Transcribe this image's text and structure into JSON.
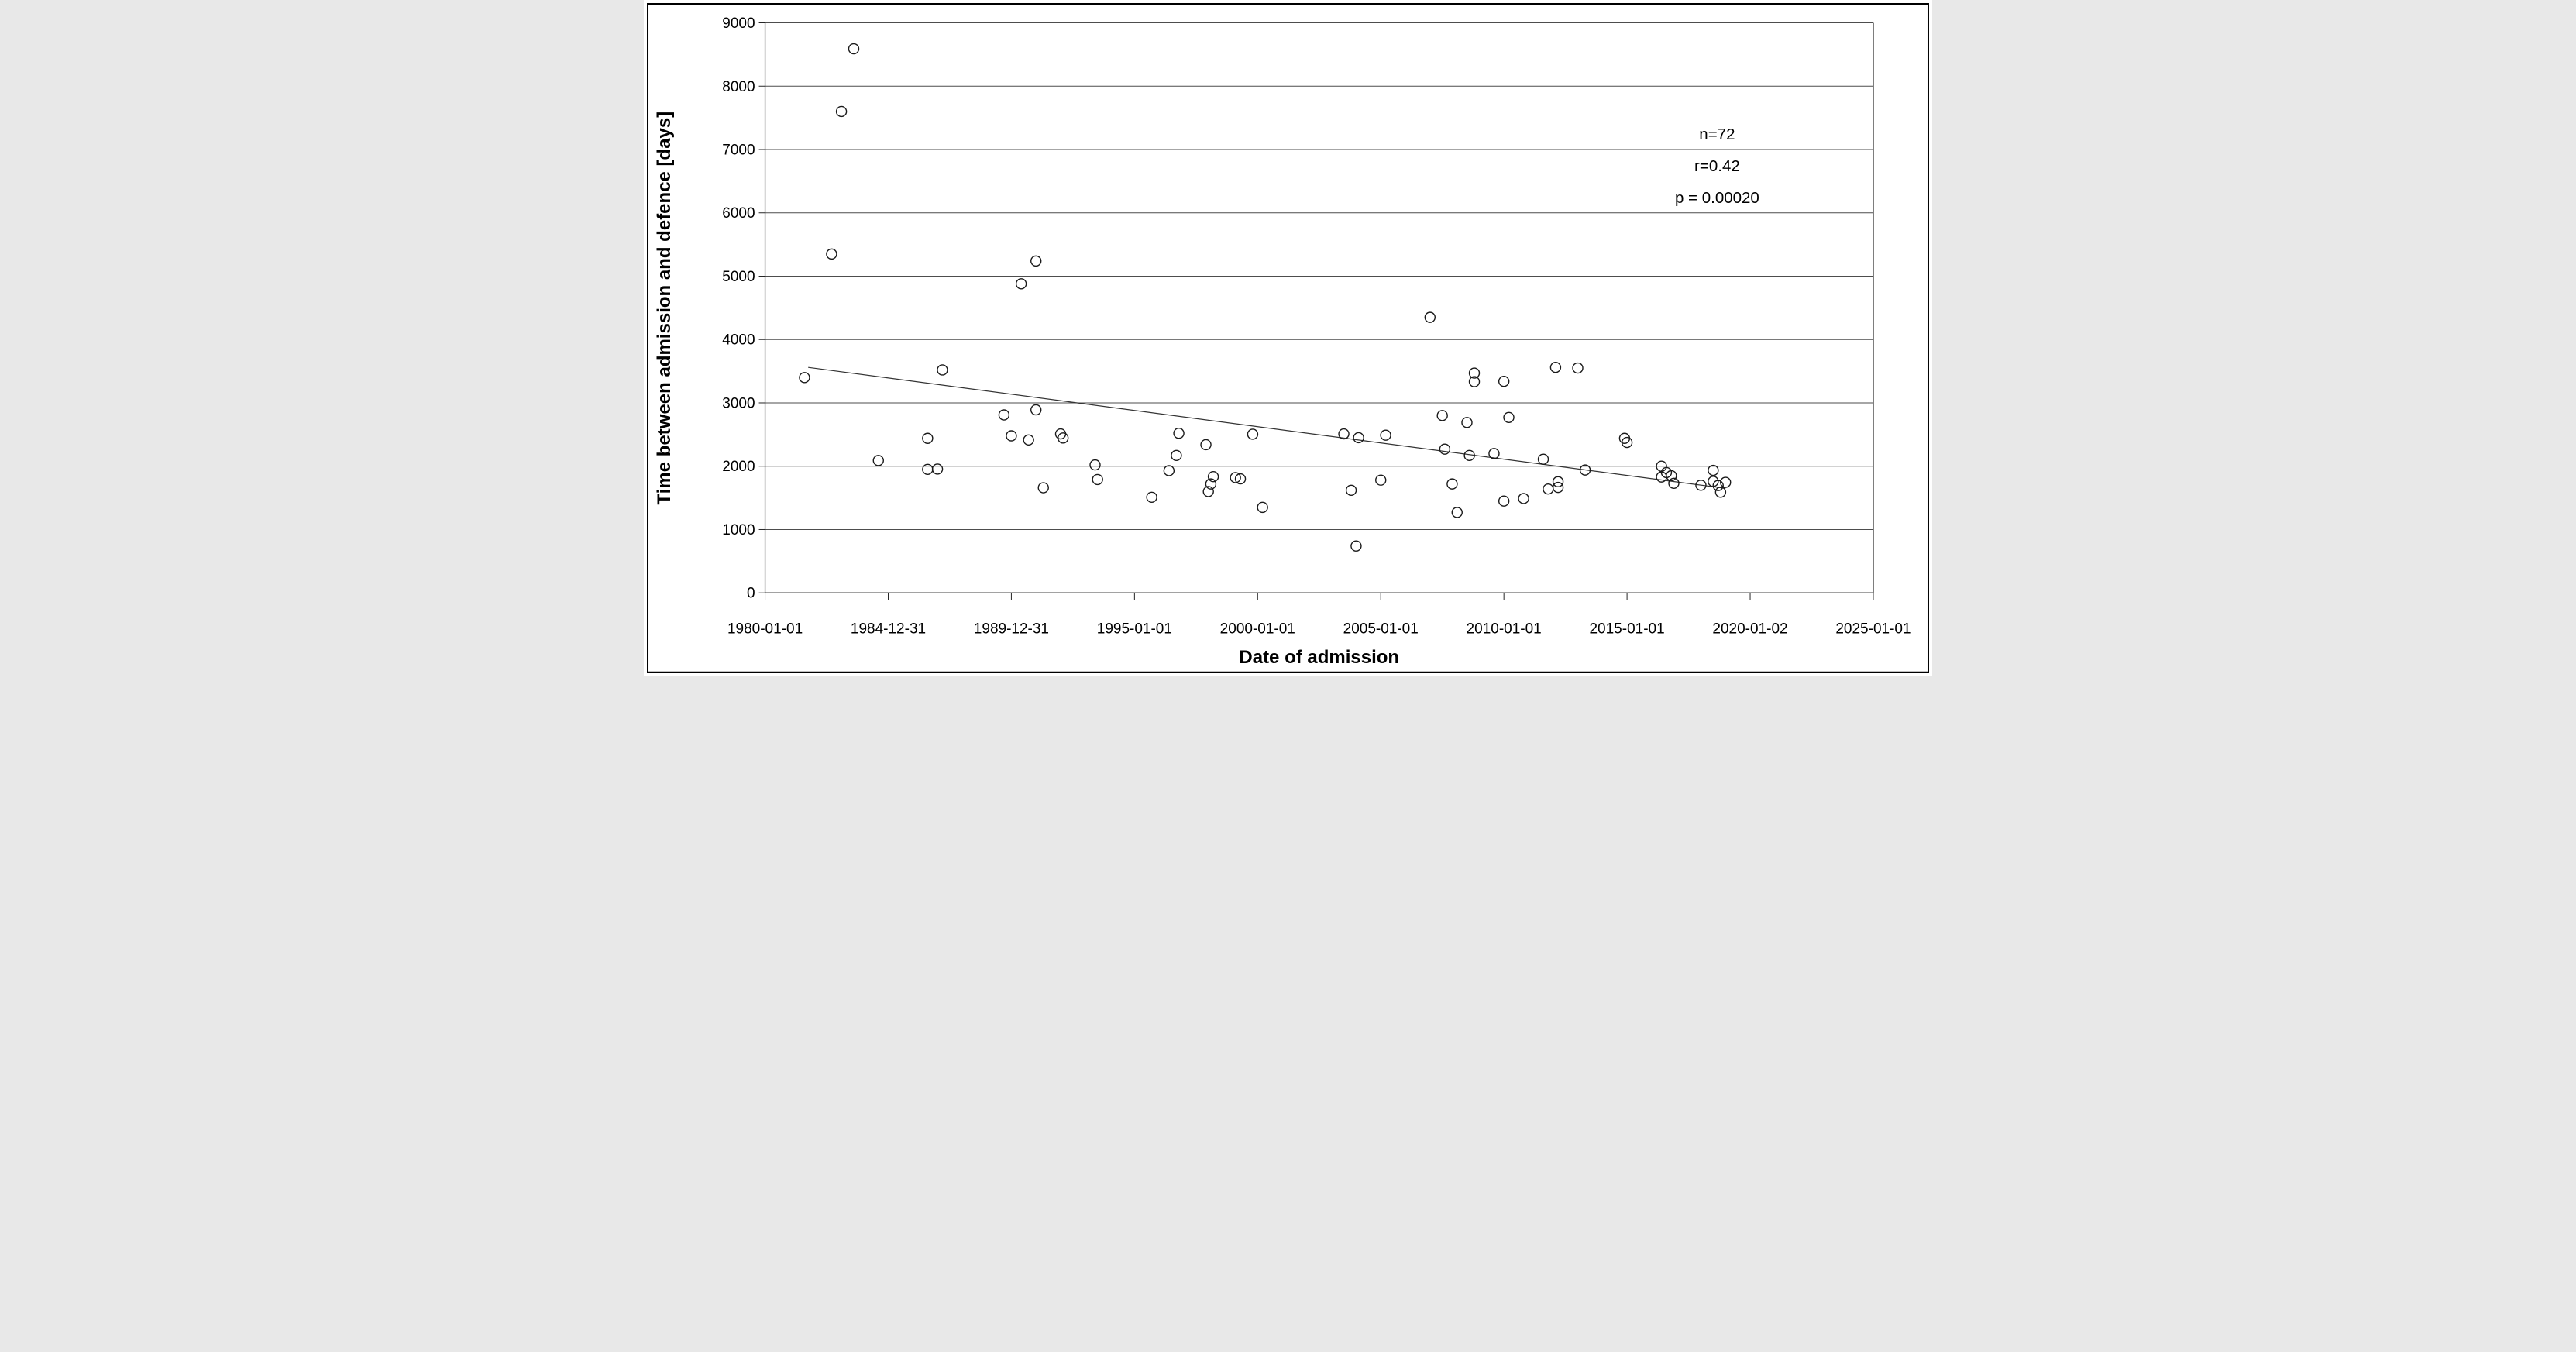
{
  "figure": {
    "background": "#ffffff",
    "border_color": "#000000",
    "marker_color": "#1a1a1a",
    "gridline_color": "#4d4d4d"
  },
  "chart_data": {
    "type": "scatter",
    "title": "",
    "xlabel": "Date of admission",
    "ylabel": "Time between admission and defence [days]",
    "legend": "none",
    "grid": "horizontal",
    "xlim_years": [
      1980,
      2025
    ],
    "ylim": [
      0,
      9000
    ],
    "y_ticks": [
      0,
      1000,
      2000,
      3000,
      4000,
      5000,
      6000,
      7000,
      8000,
      9000
    ],
    "x_tick_years": [
      1980,
      1985,
      1990,
      1995,
      2000,
      2005,
      2010,
      2015,
      2020,
      2025
    ],
    "x_tick_labels": [
      "1980-01-01",
      "1984-12-31",
      "1989-12-31",
      "1995-01-01",
      "2000-01-01",
      "2005-01-01",
      "2010-01-01",
      "2015-01-01",
      "2020-01-02",
      "2025-01-01"
    ],
    "marker": {
      "shape": "open-circle",
      "radius_px": 13
    },
    "points": [
      {
        "x": 1981.6,
        "y": 3400
      },
      {
        "x": 1982.7,
        "y": 5350
      },
      {
        "x": 1983.1,
        "y": 7600
      },
      {
        "x": 1983.6,
        "y": 8590
      },
      {
        "x": 1984.6,
        "y": 2090
      },
      {
        "x": 1986.6,
        "y": 2440
      },
      {
        "x": 1986.6,
        "y": 1950
      },
      {
        "x": 1987.0,
        "y": 1955
      },
      {
        "x": 1987.2,
        "y": 3520
      },
      {
        "x": 1989.7,
        "y": 2810
      },
      {
        "x": 1990.0,
        "y": 2480
      },
      {
        "x": 1990.4,
        "y": 4880
      },
      {
        "x": 1990.7,
        "y": 2415
      },
      {
        "x": 1991.0,
        "y": 5240
      },
      {
        "x": 1991.0,
        "y": 2890
      },
      {
        "x": 1991.3,
        "y": 1660
      },
      {
        "x": 1992.0,
        "y": 2510
      },
      {
        "x": 1992.1,
        "y": 2445
      },
      {
        "x": 1993.4,
        "y": 2020
      },
      {
        "x": 1993.5,
        "y": 1790
      },
      {
        "x": 1995.7,
        "y": 1510
      },
      {
        "x": 1996.4,
        "y": 1930
      },
      {
        "x": 1996.7,
        "y": 2170
      },
      {
        "x": 1996.8,
        "y": 2520
      },
      {
        "x": 1997.9,
        "y": 2340
      },
      {
        "x": 1998.0,
        "y": 1600
      },
      {
        "x": 1998.1,
        "y": 1720
      },
      {
        "x": 1998.2,
        "y": 1835
      },
      {
        "x": 1999.1,
        "y": 1820
      },
      {
        "x": 1999.3,
        "y": 1800
      },
      {
        "x": 1999.8,
        "y": 2505
      },
      {
        "x": 2000.2,
        "y": 1350
      },
      {
        "x": 2003.5,
        "y": 2510
      },
      {
        "x": 2003.8,
        "y": 1620
      },
      {
        "x": 2004.0,
        "y": 740
      },
      {
        "x": 2004.1,
        "y": 2450
      },
      {
        "x": 2005.0,
        "y": 1780
      },
      {
        "x": 2005.2,
        "y": 2490
      },
      {
        "x": 2007.0,
        "y": 4350
      },
      {
        "x": 2007.5,
        "y": 2800
      },
      {
        "x": 2007.6,
        "y": 2270
      },
      {
        "x": 2007.9,
        "y": 1720
      },
      {
        "x": 2008.1,
        "y": 1270
      },
      {
        "x": 2008.5,
        "y": 2690
      },
      {
        "x": 2008.6,
        "y": 2170
      },
      {
        "x": 2008.8,
        "y": 3470
      },
      {
        "x": 2008.8,
        "y": 3335
      },
      {
        "x": 2009.6,
        "y": 2200
      },
      {
        "x": 2010.0,
        "y": 1450
      },
      {
        "x": 2010.0,
        "y": 3340
      },
      {
        "x": 2010.2,
        "y": 2770
      },
      {
        "x": 2010.8,
        "y": 1490
      },
      {
        "x": 2011.6,
        "y": 2110
      },
      {
        "x": 2011.8,
        "y": 1640
      },
      {
        "x": 2012.1,
        "y": 3560
      },
      {
        "x": 2012.2,
        "y": 1755
      },
      {
        "x": 2012.2,
        "y": 1665
      },
      {
        "x": 2013.0,
        "y": 3550
      },
      {
        "x": 2013.3,
        "y": 1940
      },
      {
        "x": 2014.9,
        "y": 2440
      },
      {
        "x": 2015.0,
        "y": 2375
      },
      {
        "x": 2016.4,
        "y": 2000
      },
      {
        "x": 2016.4,
        "y": 1830
      },
      {
        "x": 2016.6,
        "y": 1900
      },
      {
        "x": 2016.8,
        "y": 1850
      },
      {
        "x": 2016.9,
        "y": 1730
      },
      {
        "x": 2018.0,
        "y": 1700
      },
      {
        "x": 2018.5,
        "y": 1935
      },
      {
        "x": 2018.5,
        "y": 1760
      },
      {
        "x": 2018.7,
        "y": 1695
      },
      {
        "x": 2018.8,
        "y": 1590
      },
      {
        "x": 2019.0,
        "y": 1745
      }
    ],
    "trendline": {
      "x1": 1981.75,
      "y1": 3560,
      "x2": 2019.0,
      "y2": 1650
    },
    "annotation": {
      "lines": [
        "n=72",
        "r=0.42",
        "p = 0.00020"
      ]
    }
  }
}
